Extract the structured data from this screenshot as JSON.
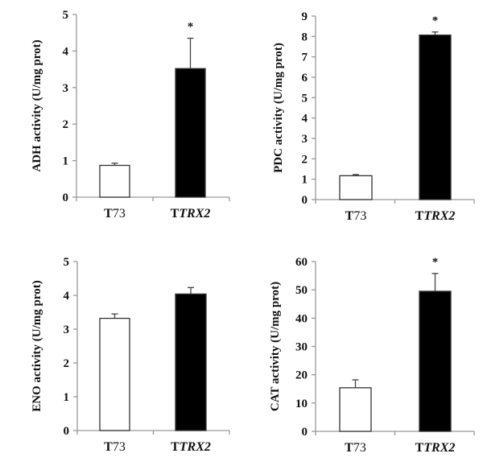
{
  "figure": {
    "categories_note": "Each panel compares T73 (white) and TTRX2 (black)",
    "category_labels": [
      {
        "prefix": "T",
        "suffix": "73",
        "suffix_italic": false
      },
      {
        "prefix": "T",
        "suffix": "TRX2",
        "suffix_italic": true
      }
    ],
    "colors": {
      "control": "#ffffff",
      "treated": "#000000",
      "axis": "#999999",
      "bar_outline": "#333333"
    }
  },
  "chart_data": [
    {
      "type": "bar",
      "panel": "top-left",
      "title": "",
      "ylabel": "ADH activity (U/mg prot)",
      "xlabel": "",
      "categories": [
        "T73",
        "TTRX2"
      ],
      "values": [
        0.87,
        3.52
      ],
      "errors": [
        0.06,
        0.83
      ],
      "significance": [
        "",
        "*"
      ],
      "ylim": [
        0,
        5
      ],
      "yticks": [
        0,
        1,
        2,
        3,
        4,
        5
      ],
      "grid": false
    },
    {
      "type": "bar",
      "panel": "top-right",
      "title": "",
      "ylabel": "PDC activity (U/mg prot)",
      "xlabel": "",
      "categories": [
        "T73",
        "TTRX2"
      ],
      "values": [
        1.17,
        8.07
      ],
      "errors": [
        0.06,
        0.15
      ],
      "significance": [
        "",
        "*"
      ],
      "ylim": [
        0,
        9
      ],
      "yticks": [
        0,
        1,
        2,
        3,
        4,
        5,
        6,
        7,
        8,
        9
      ],
      "grid": false
    },
    {
      "type": "bar",
      "panel": "bottom-left",
      "title": "",
      "ylabel": "ENO activity (U/mg prot)",
      "xlabel": "",
      "categories": [
        "T73",
        "TTRX2"
      ],
      "values": [
        3.32,
        4.04
      ],
      "errors": [
        0.13,
        0.19
      ],
      "significance": [
        "",
        ""
      ],
      "ylim": [
        0,
        5
      ],
      "yticks": [
        0,
        1,
        2,
        3,
        4,
        5
      ],
      "grid": false
    },
    {
      "type": "bar",
      "panel": "bottom-right",
      "title": "",
      "ylabel": "CAT activity (U/mg prot)",
      "xlabel": "",
      "categories": [
        "T73",
        "TTRX2"
      ],
      "values": [
        15.4,
        49.5
      ],
      "errors": [
        2.8,
        6.3
      ],
      "significance": [
        "",
        "*"
      ],
      "ylim": [
        0,
        60
      ],
      "yticks": [
        0,
        10,
        20,
        30,
        40,
        50,
        60
      ],
      "grid": false
    }
  ]
}
